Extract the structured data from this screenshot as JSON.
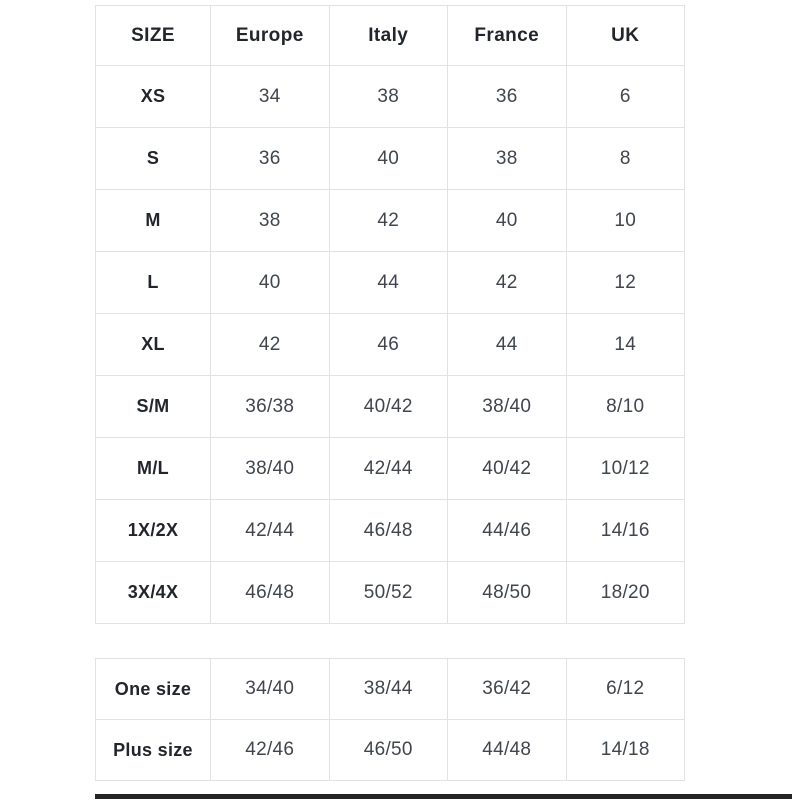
{
  "colors": {
    "background": "#ffffff",
    "border": "#e2e2e2",
    "header_text": "#22252b",
    "cell_text": "#41454d",
    "divider": "#242424"
  },
  "size_chart": {
    "columns": [
      "SIZE",
      "Europe",
      "Italy",
      "France",
      "UK"
    ],
    "rows": [
      {
        "label": "XS",
        "values": [
          "34",
          "38",
          "36",
          "6"
        ]
      },
      {
        "label": "S",
        "values": [
          "36",
          "40",
          "38",
          "8"
        ]
      },
      {
        "label": "M",
        "values": [
          "38",
          "42",
          "40",
          "10"
        ]
      },
      {
        "label": "L",
        "values": [
          "40",
          "44",
          "42",
          "12"
        ]
      },
      {
        "label": "XL",
        "values": [
          "42",
          "46",
          "44",
          "14"
        ]
      },
      {
        "label": "S/M",
        "values": [
          "36/38",
          "40/42",
          "38/40",
          "8/10"
        ]
      },
      {
        "label": "M/L",
        "values": [
          "38/40",
          "42/44",
          "40/42",
          "10/12"
        ]
      },
      {
        "label": "1X/2X",
        "values": [
          "42/44",
          "46/48",
          "44/46",
          "14/16"
        ]
      },
      {
        "label": "3X/4X",
        "values": [
          "46/48",
          "50/52",
          "48/50",
          "18/20"
        ]
      }
    ]
  },
  "special_sizes": {
    "rows": [
      {
        "label": "One size",
        "values": [
          "34/40",
          "38/44",
          "36/42",
          "6/12"
        ]
      },
      {
        "label": "Plus size",
        "values": [
          "42/46",
          "46/50",
          "44/48",
          "14/18"
        ]
      }
    ]
  }
}
